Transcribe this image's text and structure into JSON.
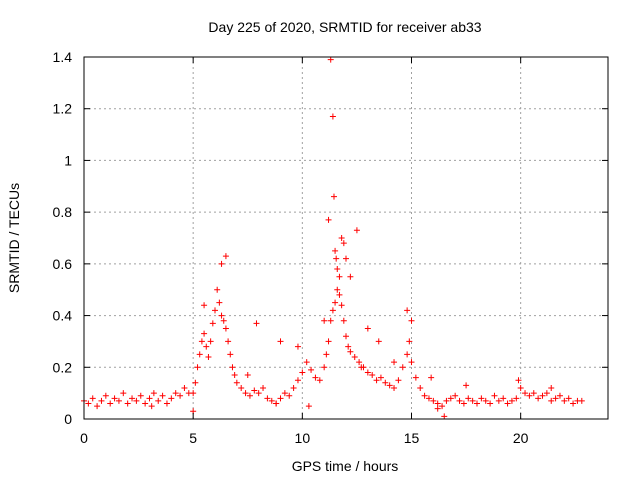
{
  "chart_data": {
    "type": "scatter",
    "title": "Day 225 of 2020, SRMTID for receiver ab33",
    "xlabel": "GPS time / hours",
    "ylabel": "SRMTID / TECUs",
    "xlim": [
      0,
      24
    ],
    "ylim": [
      0,
      1.4
    ],
    "xticks": [
      0,
      5,
      10,
      15,
      20
    ],
    "xtick_labels": [
      "0",
      "5",
      "10",
      "15",
      "20"
    ],
    "yticks": [
      0,
      0.2,
      0.4,
      0.6,
      0.8,
      1,
      1.2,
      1.4
    ],
    "ytick_labels": [
      "0",
      "0.2",
      "0.4",
      "0.6",
      "0.8",
      "1",
      "1.2",
      "1.4"
    ],
    "grid": true,
    "marker": "+",
    "series": [
      {
        "name": "SRMTID",
        "color": "#ff0000",
        "x": [
          0.0,
          0.2,
          0.4,
          0.6,
          0.8,
          1.0,
          1.2,
          1.4,
          1.6,
          1.8,
          2.0,
          2.2,
          2.4,
          2.6,
          2.8,
          3.0,
          3.2,
          3.4,
          3.6,
          3.8,
          4.0,
          4.2,
          4.4,
          4.6,
          4.8,
          5.0,
          5.1,
          5.2,
          5.3,
          5.4,
          5.5,
          5.6,
          5.7,
          5.8,
          5.9,
          6.0,
          6.1,
          6.2,
          6.3,
          6.4,
          6.5,
          6.6,
          6.7,
          6.8,
          6.9,
          7.0,
          7.2,
          7.4,
          7.6,
          7.8,
          8.0,
          8.2,
          8.4,
          8.6,
          8.8,
          9.0,
          9.2,
          9.4,
          9.6,
          9.8,
          10.0,
          10.2,
          10.4,
          10.6,
          10.8,
          11.0,
          11.1,
          11.2,
          11.3,
          11.4,
          11.5,
          11.6,
          11.7,
          11.8,
          11.9,
          12.0,
          12.1,
          12.2,
          12.4,
          12.6,
          12.8,
          13.0,
          13.2,
          13.4,
          13.6,
          13.8,
          14.0,
          14.2,
          14.4,
          14.6,
          14.8,
          15.0,
          15.2,
          15.4,
          15.6,
          15.8,
          16.0,
          16.2,
          16.4,
          16.6,
          16.8,
          17.0,
          17.2,
          17.4,
          17.6,
          17.8,
          18.0,
          18.2,
          18.4,
          18.6,
          18.8,
          19.0,
          19.2,
          19.4,
          19.6,
          19.8,
          20.0,
          20.2,
          20.4,
          20.6,
          20.8,
          21.0,
          21.2,
          21.4,
          21.6,
          21.8,
          22.0,
          22.2,
          22.4,
          22.6,
          22.8,
          6.5,
          6.3,
          5.5,
          7.9,
          9.0,
          9.8,
          11.0,
          11.2,
          11.3,
          11.4,
          11.45,
          11.5,
          11.55,
          11.6,
          11.7,
          11.8,
          11.9,
          12.0,
          12.2,
          12.5,
          13.0,
          13.5,
          14.2,
          14.8,
          15.0,
          14.9,
          15.9,
          16.5,
          16.2,
          19.9,
          5.0,
          7.5,
          8.8,
          10.3,
          12.7,
          17.5,
          21.4,
          3.1
        ],
        "y": [
          0.07,
          0.06,
          0.08,
          0.05,
          0.07,
          0.09,
          0.06,
          0.08,
          0.07,
          0.1,
          0.06,
          0.08,
          0.07,
          0.09,
          0.06,
          0.08,
          0.1,
          0.07,
          0.09,
          0.06,
          0.08,
          0.1,
          0.09,
          0.12,
          0.1,
          0.1,
          0.14,
          0.2,
          0.25,
          0.3,
          0.33,
          0.28,
          0.24,
          0.3,
          0.37,
          0.42,
          0.5,
          0.45,
          0.4,
          0.38,
          0.35,
          0.3,
          0.25,
          0.2,
          0.17,
          0.14,
          0.12,
          0.1,
          0.09,
          0.11,
          0.1,
          0.12,
          0.08,
          0.07,
          0.06,
          0.08,
          0.1,
          0.09,
          0.12,
          0.15,
          0.18,
          0.22,
          0.19,
          0.16,
          0.15,
          0.2,
          0.25,
          0.3,
          0.38,
          0.42,
          0.45,
          0.5,
          0.48,
          0.44,
          0.38,
          0.32,
          0.28,
          0.26,
          0.24,
          0.22,
          0.2,
          0.18,
          0.17,
          0.15,
          0.16,
          0.14,
          0.13,
          0.12,
          0.15,
          0.2,
          0.25,
          0.22,
          0.16,
          0.12,
          0.09,
          0.08,
          0.07,
          0.06,
          0.05,
          0.07,
          0.08,
          0.09,
          0.07,
          0.06,
          0.08,
          0.07,
          0.06,
          0.08,
          0.07,
          0.06,
          0.09,
          0.07,
          0.08,
          0.06,
          0.07,
          0.08,
          0.12,
          0.1,
          0.09,
          0.1,
          0.08,
          0.09,
          0.1,
          0.07,
          0.08,
          0.09,
          0.07,
          0.08,
          0.06,
          0.07,
          0.07,
          0.63,
          0.6,
          0.44,
          0.37,
          0.3,
          0.28,
          0.38,
          0.77,
          1.39,
          1.17,
          0.86,
          0.65,
          0.62,
          0.58,
          0.55,
          0.7,
          0.68,
          0.62,
          0.55,
          0.73,
          0.35,
          0.3,
          0.22,
          0.42,
          0.38,
          0.3,
          0.16,
          0.01,
          0.04,
          0.15,
          0.03,
          0.17,
          0.06,
          0.05,
          0.2,
          0.13,
          0.12,
          0.05
        ]
      }
    ]
  }
}
